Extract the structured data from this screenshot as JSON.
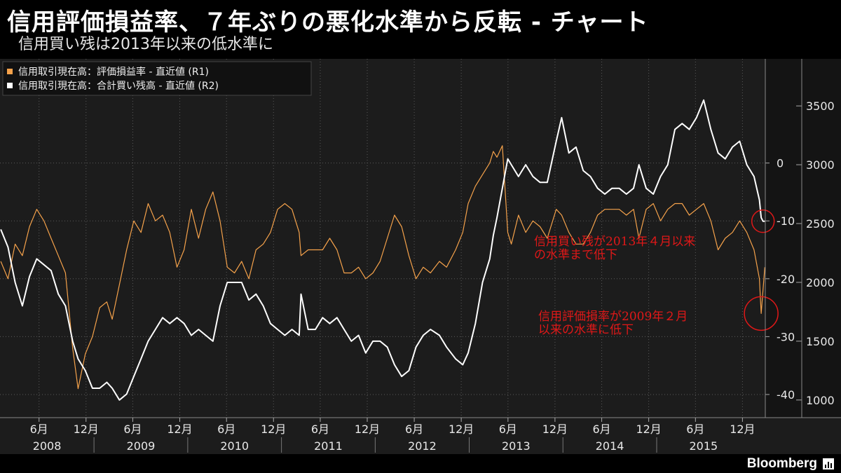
{
  "header": {
    "title": "信用評価損益率、７年ぶりの悪化水準から反転 - チャート",
    "subtitle": "信用買い残は2013年以来の低水準に"
  },
  "footer": {
    "brand": "Bloomberg"
  },
  "colors": {
    "background": "#1c1c1c",
    "orange": "#f5a24b",
    "white": "#ffffff",
    "annotation": "#e01818",
    "grid": "#5a5a5a"
  },
  "chart_data": {
    "type": "line",
    "legend": {
      "placement": "top-left",
      "entries": [
        "信用取引現在高：評価損益率 - 直近値 (R1)",
        "信用取引現在高：合計買い残高 - 直近値 (R2)"
      ]
    },
    "grid": true,
    "x_axis": {
      "range": [
        "2008-01-01",
        "2016-02-28"
      ],
      "month_ticks": [
        {
          "date": "2008-06-01",
          "label": "6月"
        },
        {
          "date": "2008-12-01",
          "label": "12月"
        },
        {
          "date": "2009-06-01",
          "label": "6月"
        },
        {
          "date": "2009-12-01",
          "label": "12月"
        },
        {
          "date": "2010-06-01",
          "label": "6月"
        },
        {
          "date": "2010-12-01",
          "label": "12月"
        },
        {
          "date": "2011-06-01",
          "label": "6月"
        },
        {
          "date": "2011-12-01",
          "label": "12月"
        },
        {
          "date": "2012-06-01",
          "label": "6月"
        },
        {
          "date": "2012-12-01",
          "label": "12月"
        },
        {
          "date": "2013-06-01",
          "label": "6月"
        },
        {
          "date": "2013-12-01",
          "label": "12月"
        },
        {
          "date": "2014-06-01",
          "label": "6月"
        },
        {
          "date": "2014-12-01",
          "label": "12月"
        },
        {
          "date": "2015-06-01",
          "label": "6月"
        },
        {
          "date": "2015-12-01",
          "label": "12月"
        }
      ],
      "years": [
        "2008",
        "2009",
        "2010",
        "2011",
        "2012",
        "2013",
        "2014",
        "2015"
      ]
    },
    "r1_axis": {
      "range": [
        -44,
        18
      ],
      "ticks": [
        0,
        -10,
        -20,
        -30,
        -40
      ],
      "tick_labels": [
        "0",
        "-10",
        "-20",
        "-30",
        "-40"
      ]
    },
    "r2_axis": {
      "range": [
        850,
        3900
      ],
      "ticks": [
        1000,
        1500,
        2000,
        2500,
        3000,
        3500
      ],
      "tick_labels": [
        "1000",
        "1500",
        "2000",
        "2500",
        "3000",
        "3500"
      ]
    },
    "series": [
      {
        "name": "信用取引現在高：評価損益率 - 直近値 (R1)",
        "axis": "r1",
        "color": "#f5a24b",
        "points": [
          [
            "2008-01-04",
            -17
          ],
          [
            "2008-02-01",
            -20
          ],
          [
            "2008-02-29",
            -14
          ],
          [
            "2008-03-28",
            -16
          ],
          [
            "2008-04-25",
            -11
          ],
          [
            "2008-05-23",
            -8
          ],
          [
            "2008-06-20",
            -10
          ],
          [
            "2008-07-18",
            -13
          ],
          [
            "2008-08-15",
            -16
          ],
          [
            "2008-09-12",
            -19
          ],
          [
            "2008-10-10",
            -32
          ],
          [
            "2008-10-31",
            -39
          ],
          [
            "2008-11-28",
            -33
          ],
          [
            "2008-12-26",
            -30
          ],
          [
            "2009-01-23",
            -25
          ],
          [
            "2009-02-20",
            -24
          ],
          [
            "2009-03-13",
            -27
          ],
          [
            "2009-04-10",
            -21
          ],
          [
            "2009-05-08",
            -15
          ],
          [
            "2009-06-05",
            -10
          ],
          [
            "2009-07-03",
            -12
          ],
          [
            "2009-07-31",
            -7
          ],
          [
            "2009-08-28",
            -10
          ],
          [
            "2009-09-25",
            -9
          ],
          [
            "2009-10-23",
            -12
          ],
          [
            "2009-11-20",
            -18
          ],
          [
            "2009-12-18",
            -15
          ],
          [
            "2010-01-15",
            -8
          ],
          [
            "2010-02-12",
            -13
          ],
          [
            "2010-03-12",
            -8
          ],
          [
            "2010-04-09",
            -5
          ],
          [
            "2010-05-07",
            -10
          ],
          [
            "2010-06-04",
            -18
          ],
          [
            "2010-07-02",
            -19
          ],
          [
            "2010-07-30",
            -17
          ],
          [
            "2010-08-27",
            -20
          ],
          [
            "2010-09-24",
            -15
          ],
          [
            "2010-10-22",
            -14
          ],
          [
            "2010-11-19",
            -12
          ],
          [
            "2010-12-17",
            -8
          ],
          [
            "2011-01-14",
            -7
          ],
          [
            "2011-02-11",
            -8
          ],
          [
            "2011-03-11",
            -12
          ],
          [
            "2011-03-18",
            -16
          ],
          [
            "2011-04-15",
            -15
          ],
          [
            "2011-05-13",
            -15
          ],
          [
            "2011-06-10",
            -15
          ],
          [
            "2011-07-08",
            -13
          ],
          [
            "2011-08-05",
            -15
          ],
          [
            "2011-09-02",
            -19
          ],
          [
            "2011-09-30",
            -19
          ],
          [
            "2011-10-28",
            -18
          ],
          [
            "2011-11-25",
            -20
          ],
          [
            "2011-12-23",
            -19
          ],
          [
            "2012-01-20",
            -17
          ],
          [
            "2012-02-17",
            -13
          ],
          [
            "2012-03-16",
            -9
          ],
          [
            "2012-04-13",
            -11
          ],
          [
            "2012-05-11",
            -16
          ],
          [
            "2012-06-08",
            -20
          ],
          [
            "2012-07-06",
            -18
          ],
          [
            "2012-08-03",
            -19
          ],
          [
            "2012-09-07",
            -17
          ],
          [
            "2012-10-05",
            -18
          ],
          [
            "2012-11-09",
            -15
          ],
          [
            "2012-12-07",
            -12
          ],
          [
            "2012-12-28",
            -7
          ],
          [
            "2013-01-25",
            -4
          ],
          [
            "2013-02-22",
            -2
          ],
          [
            "2013-03-22",
            0
          ],
          [
            "2013-04-05",
            2
          ],
          [
            "2013-04-19",
            1
          ],
          [
            "2013-05-10",
            3
          ],
          [
            "2013-05-31",
            -12
          ],
          [
            "2013-06-14",
            -14
          ],
          [
            "2013-07-12",
            -9
          ],
          [
            "2013-08-09",
            -12
          ],
          [
            "2013-09-06",
            -10
          ],
          [
            "2013-10-04",
            -11
          ],
          [
            "2013-11-01",
            -13
          ],
          [
            "2013-12-06",
            -8
          ],
          [
            "2013-12-27",
            -9
          ],
          [
            "2014-01-24",
            -12
          ],
          [
            "2014-02-21",
            -14
          ],
          [
            "2014-03-21",
            -14
          ],
          [
            "2014-04-18",
            -12
          ],
          [
            "2014-05-16",
            -9
          ],
          [
            "2014-06-13",
            -8
          ],
          [
            "2014-07-11",
            -8
          ],
          [
            "2014-08-08",
            -8
          ],
          [
            "2014-09-05",
            -9
          ],
          [
            "2014-10-03",
            -8
          ],
          [
            "2014-10-24",
            -13
          ],
          [
            "2014-11-21",
            -8
          ],
          [
            "2014-12-19",
            -7
          ],
          [
            "2015-01-16",
            -10
          ],
          [
            "2015-02-13",
            -8
          ],
          [
            "2015-03-13",
            -7
          ],
          [
            "2015-04-10",
            -7
          ],
          [
            "2015-05-08",
            -9
          ],
          [
            "2015-06-05",
            -8
          ],
          [
            "2015-07-03",
            -7
          ],
          [
            "2015-07-31",
            -10
          ],
          [
            "2015-08-28",
            -15
          ],
          [
            "2015-09-25",
            -13
          ],
          [
            "2015-10-23",
            -12
          ],
          [
            "2015-11-20",
            -10
          ],
          [
            "2015-12-18",
            -12
          ],
          [
            "2016-01-15",
            -15
          ],
          [
            "2016-02-05",
            -20
          ],
          [
            "2016-02-12",
            -26
          ],
          [
            "2016-02-19",
            -22
          ],
          [
            "2016-02-26",
            -18
          ]
        ]
      },
      {
        "name": "信用取引現在高：合計買い残高 - 直近値 (R2)",
        "axis": "r2",
        "color": "#ffffff",
        "points": [
          [
            "2008-01-04",
            2450
          ],
          [
            "2008-02-01",
            2300
          ],
          [
            "2008-02-29",
            2000
          ],
          [
            "2008-03-28",
            1800
          ],
          [
            "2008-04-25",
            2050
          ],
          [
            "2008-05-23",
            2200
          ],
          [
            "2008-06-20",
            2150
          ],
          [
            "2008-07-18",
            2100
          ],
          [
            "2008-08-15",
            1900
          ],
          [
            "2008-09-12",
            1800
          ],
          [
            "2008-10-10",
            1500
          ],
          [
            "2008-10-31",
            1350
          ],
          [
            "2008-11-28",
            1250
          ],
          [
            "2008-12-26",
            1100
          ],
          [
            "2009-01-23",
            1100
          ],
          [
            "2009-02-20",
            1150
          ],
          [
            "2009-03-13",
            1100
          ],
          [
            "2009-04-10",
            1000
          ],
          [
            "2009-05-08",
            1050
          ],
          [
            "2009-06-05",
            1200
          ],
          [
            "2009-07-03",
            1350
          ],
          [
            "2009-07-31",
            1500
          ],
          [
            "2009-08-28",
            1600
          ],
          [
            "2009-09-25",
            1700
          ],
          [
            "2009-10-23",
            1650
          ],
          [
            "2009-11-20",
            1700
          ],
          [
            "2009-12-18",
            1650
          ],
          [
            "2010-01-15",
            1550
          ],
          [
            "2010-02-12",
            1600
          ],
          [
            "2010-03-12",
            1550
          ],
          [
            "2010-04-09",
            1500
          ],
          [
            "2010-05-07",
            1800
          ],
          [
            "2010-06-04",
            2000
          ],
          [
            "2010-07-02",
            2000
          ],
          [
            "2010-07-30",
            2000
          ],
          [
            "2010-08-27",
            1850
          ],
          [
            "2010-09-24",
            1900
          ],
          [
            "2010-10-22",
            1800
          ],
          [
            "2010-11-19",
            1650
          ],
          [
            "2010-12-17",
            1600
          ],
          [
            "2011-01-14",
            1550
          ],
          [
            "2011-02-11",
            1600
          ],
          [
            "2011-03-11",
            1550
          ],
          [
            "2011-03-18",
            1900
          ],
          [
            "2011-04-15",
            1600
          ],
          [
            "2011-05-13",
            1600
          ],
          [
            "2011-06-10",
            1700
          ],
          [
            "2011-07-08",
            1650
          ],
          [
            "2011-08-05",
            1700
          ],
          [
            "2011-09-02",
            1600
          ],
          [
            "2011-09-30",
            1500
          ],
          [
            "2011-10-28",
            1550
          ],
          [
            "2011-11-25",
            1400
          ],
          [
            "2011-12-23",
            1500
          ],
          [
            "2012-01-20",
            1500
          ],
          [
            "2012-02-17",
            1450
          ],
          [
            "2012-03-16",
            1300
          ],
          [
            "2012-04-13",
            1200
          ],
          [
            "2012-05-11",
            1250
          ],
          [
            "2012-06-08",
            1450
          ],
          [
            "2012-07-06",
            1550
          ],
          [
            "2012-08-03",
            1600
          ],
          [
            "2012-09-07",
            1550
          ],
          [
            "2012-10-05",
            1450
          ],
          [
            "2012-11-09",
            1350
          ],
          [
            "2012-12-07",
            1300
          ],
          [
            "2012-12-28",
            1400
          ],
          [
            "2013-01-25",
            1650
          ],
          [
            "2013-02-22",
            2000
          ],
          [
            "2013-03-22",
            2200
          ],
          [
            "2013-04-05",
            2400
          ],
          [
            "2013-04-19",
            2550
          ],
          [
            "2013-05-10",
            2800
          ],
          [
            "2013-05-31",
            3050
          ],
          [
            "2013-06-14",
            3000
          ],
          [
            "2013-07-12",
            2900
          ],
          [
            "2013-08-09",
            3000
          ],
          [
            "2013-09-06",
            2900
          ],
          [
            "2013-10-04",
            2850
          ],
          [
            "2013-11-01",
            2850
          ],
          [
            "2013-12-06",
            3200
          ],
          [
            "2013-12-27",
            3400
          ],
          [
            "2014-01-24",
            3100
          ],
          [
            "2014-02-21",
            3150
          ],
          [
            "2014-03-21",
            2950
          ],
          [
            "2014-04-18",
            2900
          ],
          [
            "2014-05-16",
            2800
          ],
          [
            "2014-06-13",
            2750
          ],
          [
            "2014-07-11",
            2800
          ],
          [
            "2014-08-08",
            2800
          ],
          [
            "2014-09-05",
            2750
          ],
          [
            "2014-10-03",
            2800
          ],
          [
            "2014-10-24",
            3000
          ],
          [
            "2014-11-21",
            2800
          ],
          [
            "2014-12-19",
            2750
          ],
          [
            "2015-01-16",
            2900
          ],
          [
            "2015-02-13",
            3000
          ],
          [
            "2015-03-13",
            3300
          ],
          [
            "2015-04-10",
            3350
          ],
          [
            "2015-05-08",
            3300
          ],
          [
            "2015-06-05",
            3400
          ],
          [
            "2015-07-03",
            3550
          ],
          [
            "2015-07-31",
            3300
          ],
          [
            "2015-08-28",
            3100
          ],
          [
            "2015-09-25",
            3050
          ],
          [
            "2015-10-23",
            3150
          ],
          [
            "2015-11-20",
            3200
          ],
          [
            "2015-12-18",
            3000
          ],
          [
            "2016-01-15",
            2900
          ],
          [
            "2016-02-05",
            2700
          ],
          [
            "2016-02-12",
            2550
          ],
          [
            "2016-02-19",
            2520
          ],
          [
            "2016-02-26",
            2520
          ]
        ]
      }
    ],
    "annotations": [
      {
        "text": [
          "信用買い残が2013年４月以来",
          "の水準まで低下"
        ],
        "circle_date": "2016-02-19",
        "circle_series": 1,
        "circle_value": 2520
      },
      {
        "text": [
          "信用評価損率が2009年２月",
          "以来の水準に低下"
        ],
        "circle_date": "2016-02-12",
        "circle_series": 0,
        "circle_value": -26
      }
    ]
  }
}
